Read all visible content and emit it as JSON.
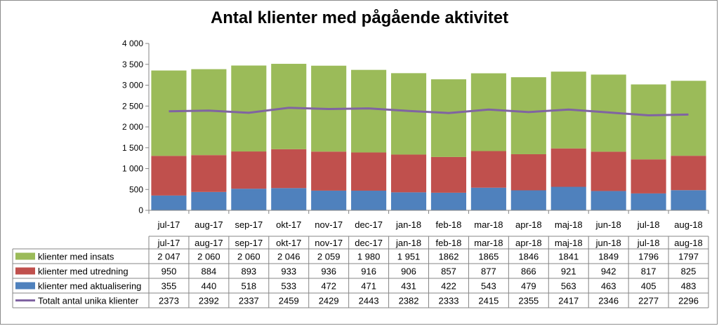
{
  "chart_data": {
    "type": "bar",
    "title": "Antal klienter med pågående aktivitet",
    "categories": [
      "jul-17",
      "aug-17",
      "sep-17",
      "okt-17",
      "nov-17",
      "dec-17",
      "jan-18",
      "feb-18",
      "mar-18",
      "apr-18",
      "maj-18",
      "jun-18",
      "jul-18",
      "aug-18"
    ],
    "ylim": [
      0,
      4000
    ],
    "yticks": [
      "0",
      "500",
      "1 000",
      "1 500",
      "2 000",
      "2 500",
      "3 000",
      "3 500",
      "4 000"
    ],
    "grid": false,
    "stacked": true,
    "series": [
      {
        "name": "klienter med aktualisering",
        "type": "bar",
        "color": "#4f81bd",
        "values": [
          355,
          440,
          518,
          533,
          472,
          471,
          431,
          422,
          543,
          479,
          563,
          463,
          405,
          483
        ],
        "labels": [
          "355",
          "440",
          "518",
          "533",
          "472",
          "471",
          "431",
          "422",
          "543",
          "479",
          "563",
          "463",
          "405",
          "483"
        ]
      },
      {
        "name": "klienter med utredning",
        "type": "bar",
        "color": "#c0504d",
        "values": [
          950,
          884,
          893,
          933,
          936,
          916,
          906,
          857,
          877,
          866,
          921,
          942,
          817,
          825
        ],
        "labels": [
          "950",
          "884",
          "893",
          "933",
          "936",
          "916",
          "906",
          "857",
          "877",
          "866",
          "921",
          "942",
          "817",
          "825"
        ]
      },
      {
        "name": "klienter med insats",
        "type": "bar",
        "color": "#9bbb59",
        "values": [
          2047,
          2060,
          2060,
          2046,
          2059,
          1980,
          1951,
          1862,
          1865,
          1846,
          1841,
          1849,
          1796,
          1797
        ],
        "labels": [
          "2 047",
          "2 060",
          "2 060",
          "2 046",
          "2 059",
          "1 980",
          "1 951",
          "1862",
          "1865",
          "1846",
          "1841",
          "1849",
          "1796",
          "1797"
        ]
      },
      {
        "name": "Totalt antal unika klienter",
        "type": "line",
        "color": "#8064a2",
        "values": [
          2373,
          2392,
          2337,
          2459,
          2429,
          2443,
          2382,
          2333,
          2415,
          2355,
          2417,
          2346,
          2277,
          2296
        ],
        "labels": [
          "2373",
          "2392",
          "2337",
          "2459",
          "2429",
          "2443",
          "2382",
          "2333",
          "2415",
          "2355",
          "2417",
          "2346",
          "2277",
          "2296"
        ]
      }
    ],
    "table_row_order": [
      "klienter med insats",
      "klienter med utredning",
      "klienter med aktualisering",
      "Totalt antal unika klienter"
    ]
  }
}
